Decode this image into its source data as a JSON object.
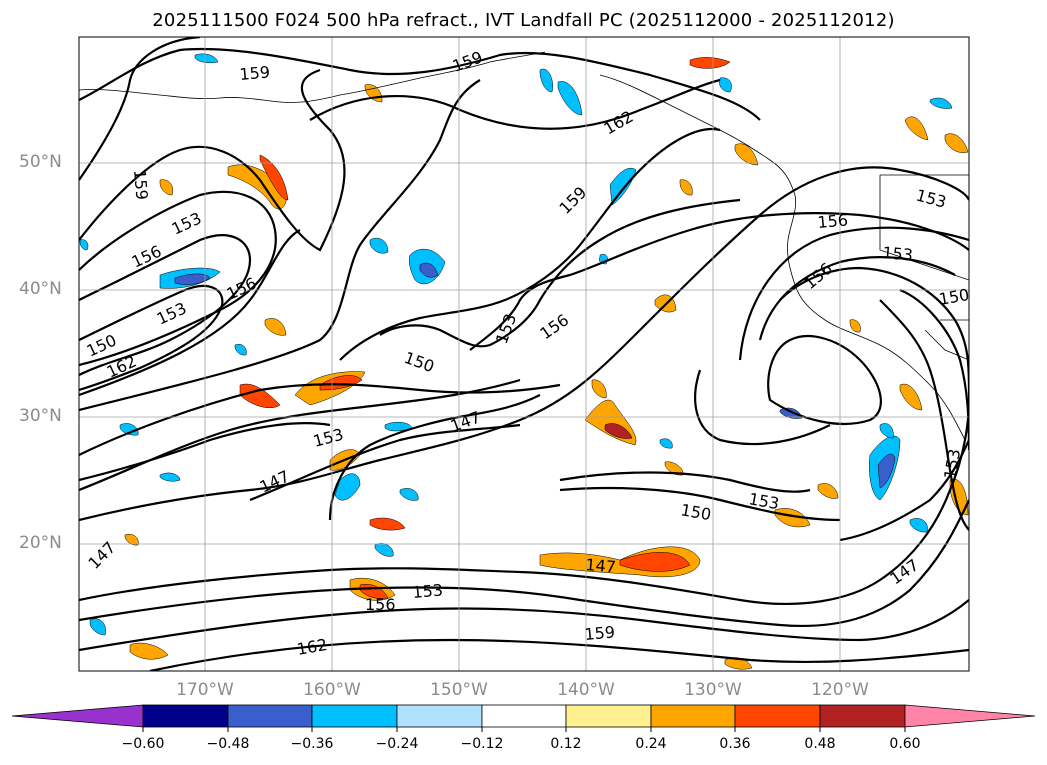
{
  "title": "2025111500 F024 500 hPa refract., IVT Landfall PC (2025112000 - 2025112012)",
  "map": {
    "lat_labels": [
      "50°N",
      "40°N",
      "30°N",
      "20°N"
    ],
    "lon_labels": [
      "170°W",
      "160°W",
      "150°W",
      "140°W",
      "130°W",
      "120°W"
    ],
    "contour_labels": [
      "159",
      "159",
      "162",
      "159",
      "153",
      "156",
      "156",
      "153",
      "150",
      "162",
      "159",
      "156",
      "150",
      "147",
      "147",
      "153",
      "156",
      "153",
      "150",
      "153",
      "147",
      "150",
      "153",
      "156",
      "162",
      "159",
      "147",
      "153",
      "153",
      "147",
      "156",
      "153"
    ],
    "shading_colors": {
      "negative_strong": "#00bfff",
      "positive_low": "#ffa500",
      "positive_high": "#ff4500",
      "positive_max": "#b22222"
    }
  },
  "colorbar": {
    "ticks": [
      "−0.60",
      "−0.48",
      "−0.36",
      "−0.24",
      "−0.12",
      "0.12",
      "0.24",
      "0.36",
      "0.48",
      "0.60"
    ],
    "colors": [
      "#9932cc",
      "#00008b",
      "#3a5fcd",
      "#00bfff",
      "#b0e2ff",
      "#ffffff",
      "#fff08f",
      "#ffa500",
      "#ff4500",
      "#b22222",
      "#ff84a8"
    ]
  }
}
